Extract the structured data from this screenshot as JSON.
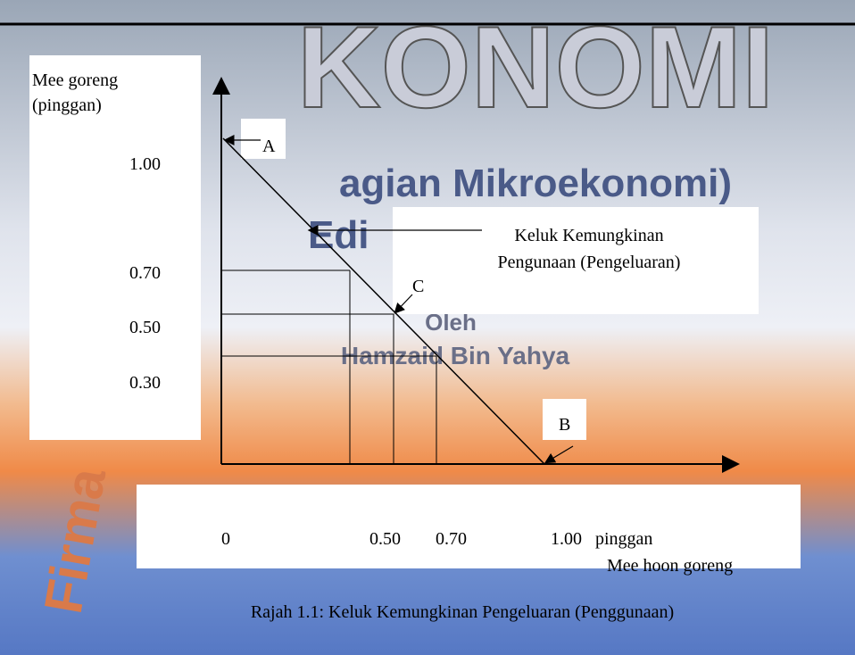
{
  "background": {
    "title": "KONOMI",
    "subtitle": "agian Mikroekonomi)",
    "edition": "Edi",
    "by": "Oleh",
    "author": "Hamzaid Bin Yahya",
    "publisher": "Firma"
  },
  "diagram": {
    "y_axis_title": [
      "Mee goreng",
      "(pinggan)"
    ],
    "y_labels": [
      "1.00",
      "0.70",
      "0.50",
      "0.30"
    ],
    "x_labels": [
      "0",
      "0.50",
      "0.70",
      "1.00   pinggan"
    ],
    "x_axis_title": "Mee hoon goreng",
    "point_a": "A",
    "point_b": "B",
    "point_c": "C",
    "curve_label": [
      "Keluk Kemungkinan",
      "Pengunaan (Pengeluaran)"
    ]
  },
  "caption": "Rajah 1.1: Keluk Kemungkinan Pengeluaran (Penggunaan)"
}
